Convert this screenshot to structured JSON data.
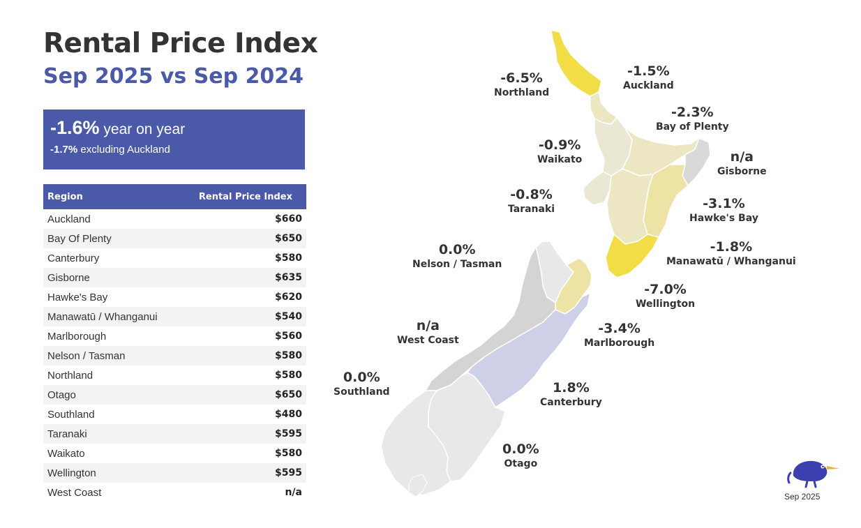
{
  "header": {
    "title": "Rental Price Index",
    "subtitle": "Sep 2025 vs Sep 2024"
  },
  "summary": {
    "headline_value": "-1.6%",
    "headline_text": "year on year",
    "secondary_value": "-1.7%",
    "secondary_text": "excluding Auckland"
  },
  "table": {
    "headers": [
      "Region",
      "Rental Price Index"
    ],
    "rows": [
      [
        "Auckland",
        "$660"
      ],
      [
        "Bay Of Plenty",
        "$650"
      ],
      [
        "Canterbury",
        "$580"
      ],
      [
        "Gisborne",
        "$635"
      ],
      [
        "Hawke's Bay",
        "$620"
      ],
      [
        "Manawatū / Whanganui",
        "$540"
      ],
      [
        "Marlborough",
        "$560"
      ],
      [
        "Nelson / Tasman",
        "$580"
      ],
      [
        "Northland",
        "$580"
      ],
      [
        "Otago",
        "$650"
      ],
      [
        "Southland",
        "$480"
      ],
      [
        "Taranaki",
        "$595"
      ],
      [
        "Waikato",
        "$580"
      ],
      [
        "Wellington",
        "$595"
      ],
      [
        "West Coast",
        "n/a"
      ]
    ]
  },
  "map": {
    "regions": [
      {
        "name": "Northland",
        "change": "-6.5%",
        "color": "#f2dd46"
      },
      {
        "name": "Auckland",
        "change": "-1.5%",
        "color": "#ece7c2"
      },
      {
        "name": "Bay of Plenty",
        "change": "-2.3%",
        "color": "#ece7c2"
      },
      {
        "name": "Waikato",
        "change": "-0.9%",
        "color": "#eae7d2"
      },
      {
        "name": "Gisborne",
        "change": "n/a",
        "color": "#d9d9d9"
      },
      {
        "name": "Taranaki",
        "change": "-0.8%",
        "color": "#eae7d2"
      },
      {
        "name": "Hawke's Bay",
        "change": "-3.1%",
        "color": "#ece3a4"
      },
      {
        "name": "Nelson / Tasman",
        "change": "0.0%",
        "color": "#e8e8e8"
      },
      {
        "name": "Manawatū / Whanganui",
        "change": "-1.8%",
        "color": "#ece7c2"
      },
      {
        "name": "Wellington",
        "change": "-7.0%",
        "color": "#f2dd46"
      },
      {
        "name": "West Coast",
        "change": "n/a",
        "color": "#d4d4d4"
      },
      {
        "name": "Marlborough",
        "change": "-3.4%",
        "color": "#ece3a4"
      },
      {
        "name": "Southland",
        "change": "0.0%",
        "color": "#e8e8e8"
      },
      {
        "name": "Canterbury",
        "change": "1.8%",
        "color": "#cdd0e6"
      },
      {
        "name": "Otago",
        "change": "0.0%",
        "color": "#e8e8e8"
      }
    ]
  },
  "footer": {
    "date": "Sep 2025",
    "logo_icon": "kiwi-bird-icon"
  }
}
